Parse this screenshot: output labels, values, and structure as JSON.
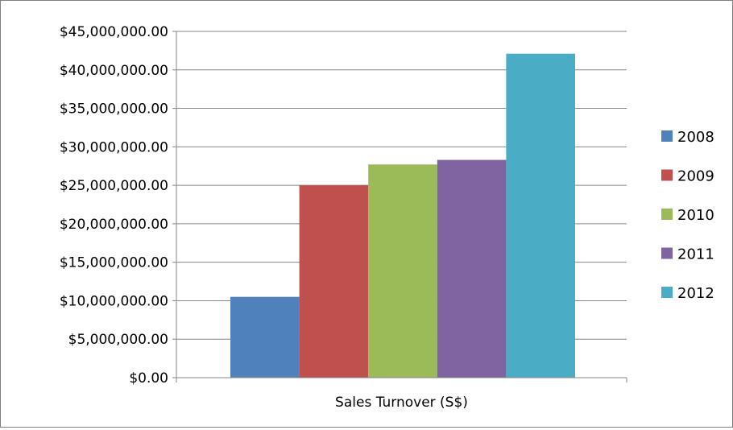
{
  "chart_data": {
    "type": "bar",
    "categories": [
      "Sales Turnover (S$)"
    ],
    "series": [
      {
        "name": "2008",
        "values": [
          10500000
        ],
        "color": "#4f81bd"
      },
      {
        "name": "2009",
        "values": [
          25000000
        ],
        "color": "#c0504d"
      },
      {
        "name": "2010",
        "values": [
          27700000
        ],
        "color": "#9bbb59"
      },
      {
        "name": "2011",
        "values": [
          28300000
        ],
        "color": "#8064a2"
      },
      {
        "name": "2012",
        "values": [
          42100000
        ],
        "color": "#4bacc6"
      }
    ],
    "title": "",
    "xlabel": "",
    "ylabel": "",
    "ylim": [
      0,
      45000000
    ],
    "y_ticks": [
      0,
      5000000,
      10000000,
      15000000,
      20000000,
      25000000,
      30000000,
      35000000,
      40000000,
      45000000
    ],
    "y_tick_labels": [
      "$0.00",
      "$5,000,000.00",
      "$10,000,000.00",
      "$15,000,000.00",
      "$20,000,000.00",
      "$25,000,000.00",
      "$30,000,000.00",
      "$35,000,000.00",
      "$40,000,000.00",
      "$45,000,000.00"
    ],
    "grid": true,
    "legend": "right",
    "gridline_color": "#868686",
    "axis_color": "#868686"
  }
}
